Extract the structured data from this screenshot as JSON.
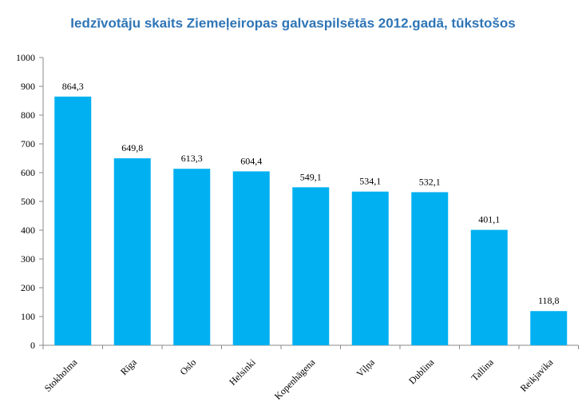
{
  "chart_data": {
    "type": "bar",
    "title": "Iedzīvotāju skaits Ziemeļeiropas galvaspilsētās 2012.gadā, tūkstošos",
    "categories": [
      "Stokholma",
      "Rīga",
      "Oslo",
      "Helsinki",
      "Kopenhāgena",
      "Viļņa",
      "Dublina",
      "Tallina",
      "Reikjavika"
    ],
    "values": [
      864.3,
      649.8,
      613.3,
      604.4,
      549.1,
      534.1,
      532.1,
      401.1,
      118.8
    ],
    "value_labels": [
      "864,3",
      "649,8",
      "613,3",
      "604,4",
      "549,1",
      "534,1",
      "532,1",
      "401,1",
      "118,8"
    ],
    "color": "#00b0f0",
    "ylim": [
      0,
      1000
    ],
    "yticks": [
      0,
      100,
      200,
      300,
      400,
      500,
      600,
      700,
      800,
      900,
      1000
    ],
    "grid": false
  }
}
